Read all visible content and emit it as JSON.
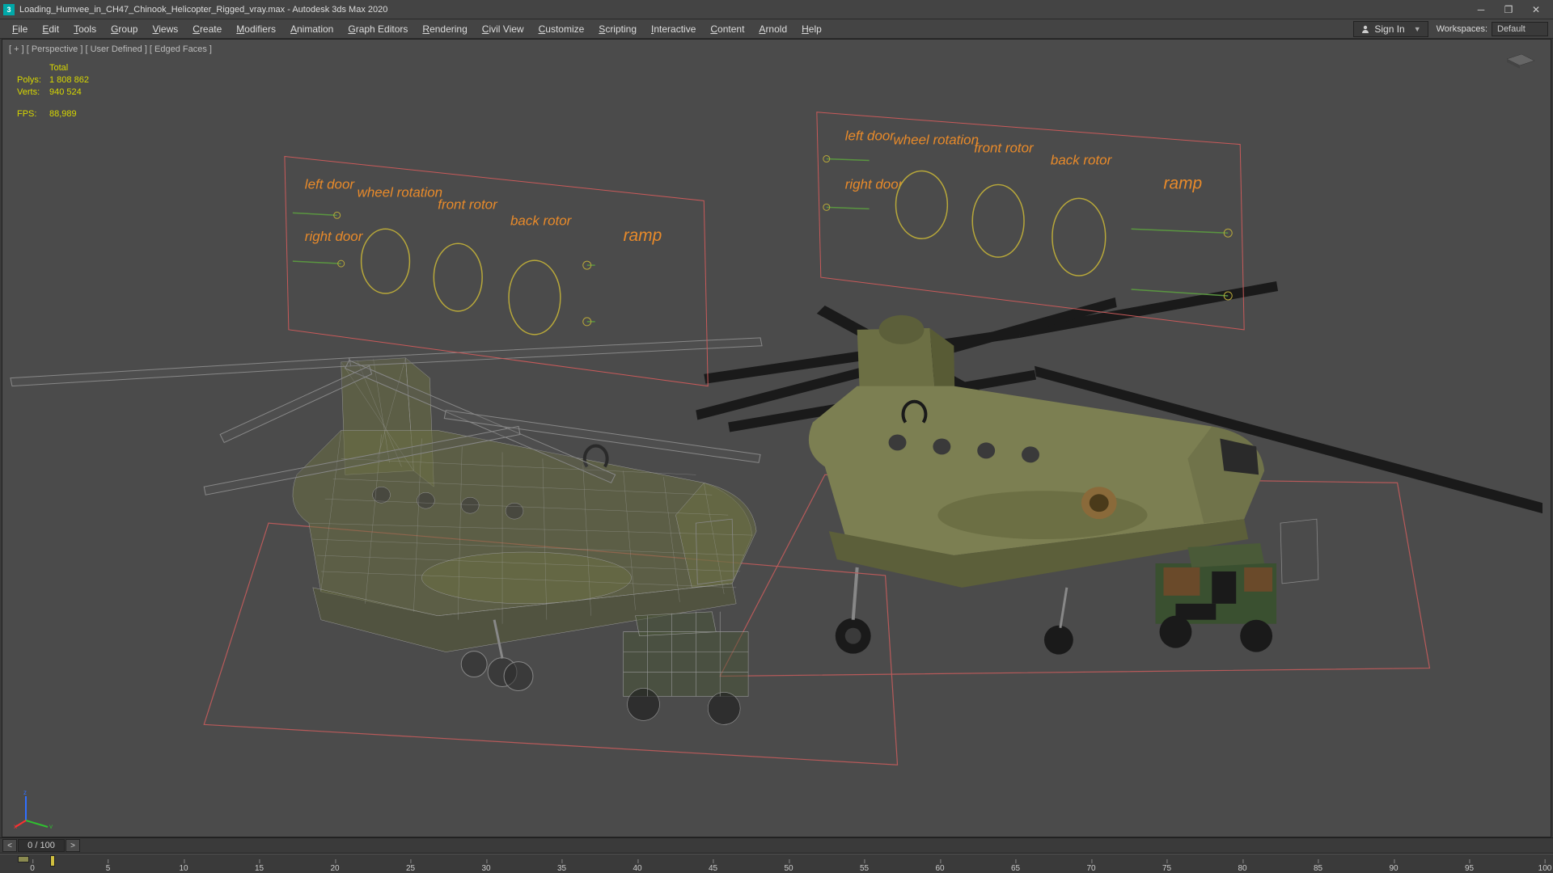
{
  "title": "Loading_Humvee_in_CH47_Chinook_Helicopter_Rigged_vray.max - Autodesk 3ds Max 2020",
  "app_badge": "3",
  "menu": [
    "File",
    "Edit",
    "Tools",
    "Group",
    "Views",
    "Create",
    "Modifiers",
    "Animation",
    "Graph Editors",
    "Rendering",
    "Civil View",
    "Customize",
    "Scripting",
    "Interactive",
    "Content",
    "Arnold",
    "Help"
  ],
  "sign_in": "Sign In",
  "workspaces_label": "Workspaces:",
  "workspaces_value": "Default",
  "viewport_label": "[ + ] [ Perspective ] [ User Defined ] [ Edged Faces ]",
  "stats": {
    "total": "Total",
    "polys_label": "Polys:",
    "polys_value": "1 808 862",
    "verts_label": "Verts:",
    "verts_value": "940 524",
    "fps_label": "FPS:",
    "fps_value": "88,989"
  },
  "frame_range": "0 / 100",
  "timeline_ticks": [
    0,
    5,
    10,
    15,
    20,
    25,
    30,
    35,
    40,
    45,
    50,
    55,
    60,
    65,
    70,
    75,
    80,
    85,
    90,
    95,
    100
  ],
  "rig_panel": {
    "controls": [
      "left door",
      "wheel rotation",
      "front rotor",
      "back rotor",
      "ramp",
      "right door"
    ],
    "label_color": "#e88a2a",
    "border_color": "#c95a5a",
    "circle_color": "#b8a83a",
    "line_color": "#5a9640"
  },
  "colors": {
    "viewport_bg": "#4b4b4b",
    "ui_bg": "#3a3a3a",
    "heli_body": "#7a7d4f",
    "heli_shade": "#5c5f3a",
    "rotor": "#1a1a1a",
    "wire": "#888888",
    "ground_box": "#b85a5a",
    "camo1": "#3a5030",
    "camo2": "#6a4a2a",
    "camo3": "#1a1a1a"
  }
}
